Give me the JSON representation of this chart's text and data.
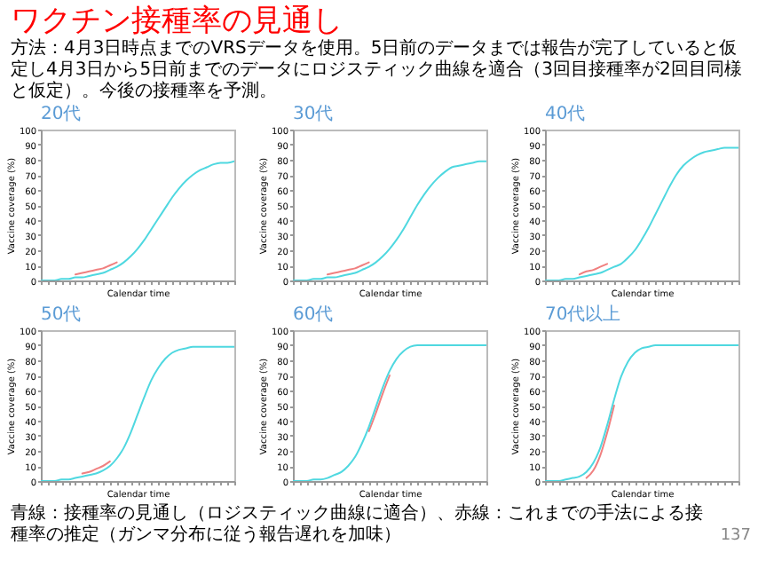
{
  "chart_data": [
    {
      "type": "line",
      "title": "20代",
      "xlabel": "Calendar time",
      "ylabel": "Vaccine coverage (%)",
      "annotations": [
        "ワクチン接種率の見通し",
        "方法：4月3日時点までのVRSデータを使用。5日前のデータまでは報告が完了していると仮定し4月3日から5日前までのデータにロジスティック曲線を適合（3回目接種率が2回目同様と仮定）。今後の接種率を予測。"
      ],
      "categories": [
        null,
        null,
        null,
        null,
        null,
        null,
        null,
        null,
        null,
        null,
        null,
        null,
        null,
        null,
        null,
        null,
        null,
        null,
        null,
        null,
        null,
        null,
        null,
        null,
        null,
        null,
        null,
        null,
        null
      ],
      "ylim": [
        0,
        100
      ],
      "yticks": [
        0,
        10,
        20,
        30,
        40,
        50,
        60,
        70,
        80,
        90,
        100
      ],
      "tick_labels": "y",
      "series": [
        {
          "color": "#f08080",
          "values": [
            null,
            null,
            null,
            null,
            null,
            4,
            5,
            6,
            7,
            8,
            10,
            12,
            null,
            null,
            null,
            null,
            null,
            null,
            null,
            null,
            null,
            null,
            null,
            null,
            null,
            null,
            null,
            null,
            null
          ]
        },
        {
          "color": "#4fd8e0",
          "values": [
            0,
            0,
            0,
            1,
            1,
            2,
            2,
            3,
            4,
            5,
            7,
            9,
            12,
            16,
            21,
            27,
            34,
            41,
            48,
            55,
            61,
            66,
            70,
            73,
            75,
            77,
            78,
            78,
            79
          ]
        }
      ]
    },
    {
      "type": "line",
      "title": "30代",
      "xlabel": "Calendar time",
      "ylabel": "Vaccine coverage (%)",
      "categories": [
        null,
        null,
        null,
        null,
        null,
        null,
        null,
        null,
        null,
        null,
        null,
        null,
        null,
        null,
        null,
        null,
        null,
        null,
        null,
        null,
        null,
        null,
        null,
        null,
        null,
        null,
        null,
        null,
        null
      ],
      "ylim": [
        0,
        100
      ],
      "yticks": [
        0,
        10,
        20,
        30,
        40,
        50,
        60,
        70,
        80,
        90,
        100
      ],
      "tick_labels": "y",
      "series": [
        {
          "color": "#f08080",
          "values": [
            null,
            null,
            null,
            null,
            null,
            4,
            5,
            6,
            7,
            8,
            10,
            12,
            null,
            null,
            null,
            null,
            null,
            null,
            null,
            null,
            null,
            null,
            null,
            null,
            null,
            null,
            null,
            null,
            null
          ]
        },
        {
          "color": "#4fd8e0",
          "values": [
            0,
            0,
            0,
            1,
            1,
            2,
            2,
            3,
            4,
            5,
            7,
            9,
            12,
            16,
            21,
            27,
            34,
            42,
            50,
            57,
            63,
            68,
            72,
            75,
            76,
            77,
            78,
            79,
            79
          ]
        }
      ]
    },
    {
      "type": "line",
      "title": "40代",
      "xlabel": "Calendar time",
      "ylabel": "Vaccine coverage (%)",
      "categories": [
        null,
        null,
        null,
        null,
        null,
        null,
        null,
        null,
        null,
        null,
        null,
        null,
        null,
        null,
        null,
        null,
        null,
        null,
        null,
        null,
        null,
        null,
        null,
        null,
        null,
        null,
        null,
        null,
        null
      ],
      "ylim": [
        0,
        100
      ],
      "yticks": [
        0,
        10,
        20,
        30,
        40,
        50,
        60,
        70,
        80,
        90,
        100
      ],
      "tick_labels": "y",
      "series": [
        {
          "color": "#f08080",
          "values": [
            null,
            null,
            null,
            null,
            null,
            4,
            6,
            7,
            9,
            11,
            null,
            null,
            null,
            null,
            null,
            null,
            null,
            null,
            null,
            null,
            null,
            null,
            null,
            null,
            null,
            null,
            null,
            null,
            null
          ]
        },
        {
          "color": "#4fd8e0",
          "values": [
            0,
            0,
            0,
            1,
            1,
            2,
            3,
            4,
            5,
            7,
            9,
            11,
            15,
            20,
            27,
            35,
            44,
            53,
            62,
            70,
            76,
            80,
            83,
            85,
            86,
            87,
            88,
            88,
            88
          ]
        }
      ]
    },
    {
      "type": "line",
      "title": "50代",
      "xlabel": "Calendar time",
      "ylabel": "Vaccine coverage (%)",
      "categories": [
        null,
        null,
        null,
        null,
        null,
        null,
        null,
        null,
        null,
        null,
        null,
        null,
        null,
        null,
        null,
        null,
        null,
        null,
        null,
        null,
        null,
        null,
        null,
        null,
        null,
        null,
        null,
        null,
        null
      ],
      "ylim": [
        0,
        100
      ],
      "yticks": [
        0,
        10,
        20,
        30,
        40,
        50,
        60,
        70,
        80,
        90,
        100
      ],
      "tick_labels": "y",
      "series": [
        {
          "color": "#f08080",
          "values": [
            null,
            null,
            null,
            null,
            null,
            null,
            5,
            6,
            8,
            10,
            13,
            null,
            null,
            null,
            null,
            null,
            null,
            null,
            null,
            null,
            null,
            null,
            null,
            null,
            null,
            null,
            null,
            null,
            null
          ]
        },
        {
          "color": "#4fd8e0",
          "values": [
            0,
            0,
            0,
            1,
            1,
            2,
            3,
            4,
            5,
            7,
            10,
            15,
            22,
            32,
            44,
            56,
            67,
            75,
            81,
            85,
            87,
            88,
            89,
            89,
            89,
            89,
            89,
            89,
            89
          ]
        }
      ]
    },
    {
      "type": "line",
      "title": "60代",
      "xlabel": "Calendar time",
      "ylabel": "Vaccine coverage (%)",
      "categories": [
        null,
        null,
        null,
        null,
        null,
        null,
        null,
        null,
        null,
        null,
        null,
        null,
        null,
        null,
        null,
        null,
        null,
        null,
        null,
        null,
        null,
        null,
        null,
        null,
        null,
        null,
        null,
        null,
        null
      ],
      "ylim": [
        0,
        100
      ],
      "yticks": [
        0,
        10,
        20,
        30,
        40,
        50,
        60,
        70,
        80,
        90,
        100
      ],
      "tick_labels": "y",
      "series": [
        {
          "color": "#f08080",
          "values": [
            null,
            null,
            null,
            null,
            null,
            null,
            null,
            null,
            null,
            null,
            null,
            33,
            45,
            58,
            70,
            null,
            null,
            null,
            null,
            null,
            null,
            null,
            null,
            null,
            null,
            null,
            null,
            null,
            null
          ]
        },
        {
          "color": "#4fd8e0",
          "values": [
            0,
            0,
            0,
            1,
            1,
            2,
            4,
            6,
            10,
            16,
            25,
            36,
            49,
            62,
            73,
            81,
            86,
            89,
            90,
            90,
            90,
            90,
            90,
            90,
            90,
            90,
            90,
            90,
            90
          ]
        }
      ]
    },
    {
      "type": "line",
      "title": "70代以上",
      "xlabel": "Calendar time",
      "ylabel": "Vaccine coverage (%)",
      "annotations": [
        "青線：接種率の見通し（ロジスティック曲線に適合）、赤線：これまでの手法による接種率の推定（ガンマ分布に従う報告遅れを加味）",
        "137"
      ],
      "categories": [
        null,
        null,
        null,
        null,
        null,
        null,
        null,
        null,
        null,
        null,
        null,
        null,
        null,
        null,
        null,
        null,
        null,
        null,
        null,
        null,
        null,
        null,
        null,
        null,
        null,
        null,
        null,
        null,
        null
      ],
      "ylim": [
        0,
        100
      ],
      "yticks": [
        0,
        10,
        20,
        30,
        40,
        50,
        60,
        70,
        80,
        90,
        100
      ],
      "tick_labels": "y",
      "series": [
        {
          "color": "#f08080",
          "values": [
            null,
            null,
            null,
            null,
            null,
            null,
            2,
            7,
            17,
            32,
            50,
            null,
            null,
            null,
            null,
            null,
            null,
            null,
            null,
            null,
            null,
            null,
            null,
            null,
            null,
            null,
            null,
            null,
            null
          ]
        },
        {
          "color": "#4fd8e0",
          "values": [
            0,
            0,
            0,
            1,
            2,
            3,
            6,
            12,
            22,
            37,
            54,
            69,
            79,
            85,
            88,
            89,
            90,
            90,
            90,
            90,
            90,
            90,
            90,
            90,
            90,
            90,
            90,
            90,
            90
          ]
        }
      ]
    }
  ]
}
